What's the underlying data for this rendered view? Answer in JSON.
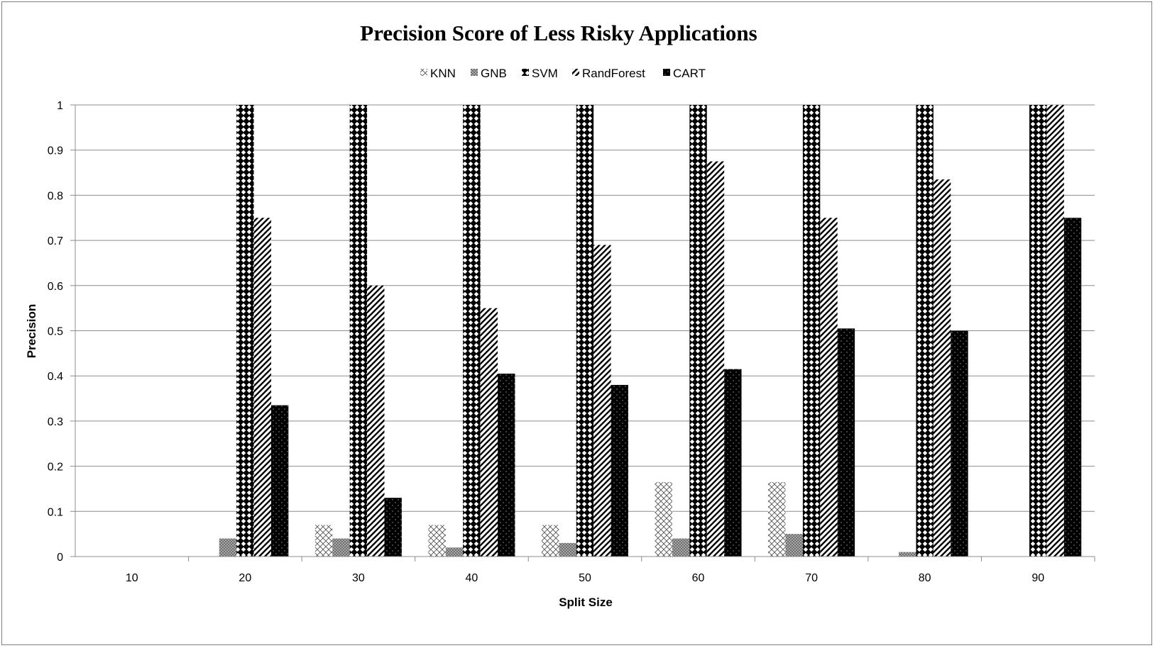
{
  "chart_data": {
    "type": "bar",
    "title": "Precision Score of Less Risky Applications",
    "xlabel": "Split Size",
    "ylabel": "Precision",
    "categories": [
      "10",
      "20",
      "30",
      "40",
      "50",
      "60",
      "70",
      "80",
      "90"
    ],
    "ylim": [
      0,
      1
    ],
    "yticks": [
      "0",
      "0.1",
      "0.2",
      "0.3",
      "0.4",
      "0.5",
      "0.6",
      "0.7",
      "0.8",
      "0.9",
      "1"
    ],
    "grid": true,
    "legend_position": "top",
    "series": [
      {
        "name": "KNN",
        "pattern": "crosshatch-light",
        "color": "#555555",
        "values": [
          0,
          0,
          0.07,
          0.07,
          0.07,
          0.165,
          0.165,
          0,
          0
        ]
      },
      {
        "name": "GNB",
        "pattern": "dense-grey",
        "color": "#777777",
        "values": [
          0,
          0.04,
          0.04,
          0.02,
          0.03,
          0.04,
          0.05,
          0.01,
          0
        ]
      },
      {
        "name": "SVM",
        "pattern": "checker-diamond",
        "color": "#000000",
        "values": [
          0,
          1,
          1,
          1,
          1,
          1,
          1,
          1,
          1
        ]
      },
      {
        "name": "RandForest",
        "pattern": "diagonal-stripes",
        "color": "#000000",
        "values": [
          0,
          0.75,
          0.6,
          0.55,
          0.69,
          0.875,
          0.75,
          0.835,
          1
        ]
      },
      {
        "name": "CART",
        "pattern": "black-dotted",
        "color": "#000000",
        "values": [
          0,
          0.335,
          0.13,
          0.405,
          0.38,
          0.415,
          0.505,
          0.5,
          0.75
        ]
      }
    ]
  }
}
